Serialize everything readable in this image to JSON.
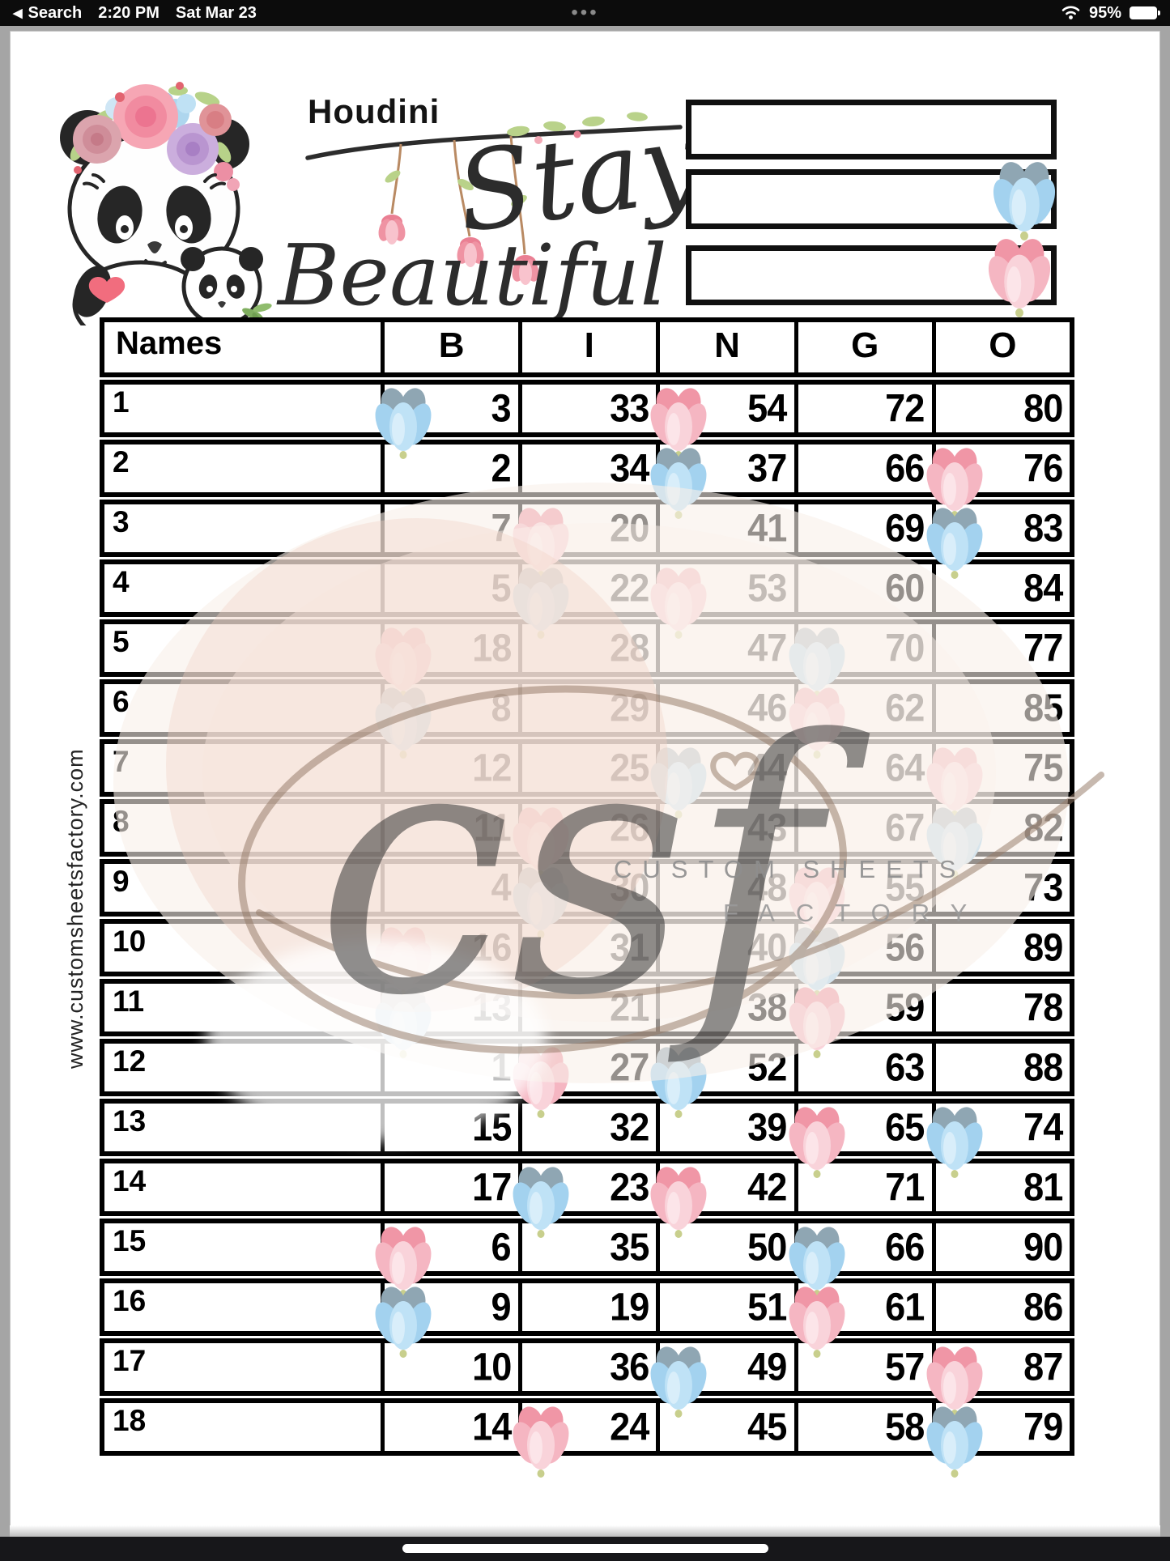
{
  "status_bar": {
    "back_arrow": "◀",
    "back": "Search",
    "time": "2:20 PM",
    "date": "Sat Mar 23",
    "handle_dots": "•••",
    "battery_percent": "95%"
  },
  "header": {
    "player_name": "Houdini",
    "title_word1": "Stay",
    "title_word2": "Beautiful",
    "info_boxes": [
      {
        "flower": ""
      },
      {
        "flower": "blue"
      },
      {
        "flower": "pink"
      }
    ]
  },
  "table": {
    "headers": [
      "Names",
      "B",
      "I",
      "N",
      "G",
      "O"
    ],
    "rows": [
      {
        "label": "1",
        "cells": [
          {
            "v": "3",
            "f": "blue"
          },
          {
            "v": "33"
          },
          {
            "v": "54",
            "f": "pink"
          },
          {
            "v": "72"
          },
          {
            "v": "80"
          }
        ]
      },
      {
        "label": "2",
        "cells": [
          {
            "v": "2"
          },
          {
            "v": "34"
          },
          {
            "v": "37",
            "f": "blue"
          },
          {
            "v": "66"
          },
          {
            "v": "76",
            "f": "pink"
          }
        ]
      },
      {
        "label": "3",
        "cells": [
          {
            "v": "7"
          },
          {
            "v": "20",
            "f": "pink"
          },
          {
            "v": "41"
          },
          {
            "v": "69"
          },
          {
            "v": "83",
            "f": "blue"
          }
        ]
      },
      {
        "label": "4",
        "cells": [
          {
            "v": "5"
          },
          {
            "v": "22",
            "f": "blue"
          },
          {
            "v": "53",
            "f": "pink"
          },
          {
            "v": "60"
          },
          {
            "v": "84"
          }
        ]
      },
      {
        "label": "5",
        "cells": [
          {
            "v": "18",
            "f": "pink"
          },
          {
            "v": "28"
          },
          {
            "v": "47"
          },
          {
            "v": "70",
            "f": "blue"
          },
          {
            "v": "77"
          }
        ]
      },
      {
        "label": "6",
        "cells": [
          {
            "v": "8",
            "f": "blue"
          },
          {
            "v": "29"
          },
          {
            "v": "46"
          },
          {
            "v": "62",
            "f": "pink"
          },
          {
            "v": "85"
          }
        ]
      },
      {
        "label": "7",
        "cells": [
          {
            "v": "12"
          },
          {
            "v": "25"
          },
          {
            "v": "44",
            "f": "blue"
          },
          {
            "v": "64"
          },
          {
            "v": "75",
            "f": "pink"
          }
        ]
      },
      {
        "label": "8",
        "cells": [
          {
            "v": "11"
          },
          {
            "v": "26",
            "f": "pink"
          },
          {
            "v": "43"
          },
          {
            "v": "67"
          },
          {
            "v": "82",
            "f": "blue"
          }
        ]
      },
      {
        "label": "9",
        "cells": [
          {
            "v": "4"
          },
          {
            "v": "30",
            "f": "blue"
          },
          {
            "v": "48"
          },
          {
            "v": "55",
            "f": "pink"
          },
          {
            "v": "73"
          }
        ]
      },
      {
        "label": "10",
        "cells": [
          {
            "v": "16",
            "f": "pink"
          },
          {
            "v": "31"
          },
          {
            "v": "40"
          },
          {
            "v": "56",
            "f": "blue"
          },
          {
            "v": "89"
          }
        ]
      },
      {
        "label": "11",
        "cells": [
          {
            "v": "13",
            "f": "blue"
          },
          {
            "v": "21"
          },
          {
            "v": "38"
          },
          {
            "v": "59",
            "f": "pink"
          },
          {
            "v": "78"
          }
        ]
      },
      {
        "label": "12",
        "cells": [
          {
            "v": "1"
          },
          {
            "v": "27",
            "f": "pink"
          },
          {
            "v": "52",
            "f": "blue"
          },
          {
            "v": "63"
          },
          {
            "v": "88"
          }
        ]
      },
      {
        "label": "13",
        "cells": [
          {
            "v": "15"
          },
          {
            "v": "32"
          },
          {
            "v": "39"
          },
          {
            "v": "65",
            "f": "pink"
          },
          {
            "v": "74",
            "f": "blue"
          }
        ]
      },
      {
        "label": "14",
        "cells": [
          {
            "v": "17"
          },
          {
            "v": "23",
            "f": "blue"
          },
          {
            "v": "42",
            "f": "pink"
          },
          {
            "v": "71"
          },
          {
            "v": "81"
          }
        ]
      },
      {
        "label": "15",
        "cells": [
          {
            "v": "6",
            "f": "pink"
          },
          {
            "v": "35"
          },
          {
            "v": "50"
          },
          {
            "v": "66",
            "f": "blue"
          },
          {
            "v": "90"
          }
        ]
      },
      {
        "label": "16",
        "cells": [
          {
            "v": "9",
            "f": "blue"
          },
          {
            "v": "19"
          },
          {
            "v": "51"
          },
          {
            "v": "61",
            "f": "pink"
          },
          {
            "v": "86"
          }
        ]
      },
      {
        "label": "17",
        "cells": [
          {
            "v": "10"
          },
          {
            "v": "36"
          },
          {
            "v": "49",
            "f": "blue"
          },
          {
            "v": "57"
          },
          {
            "v": "87",
            "f": "pink"
          }
        ]
      },
      {
        "label": "18",
        "cells": [
          {
            "v": "14"
          },
          {
            "v": "24",
            "f": "pink"
          },
          {
            "v": "45"
          },
          {
            "v": "58"
          },
          {
            "v": "79",
            "f": "blue"
          }
        ]
      }
    ]
  },
  "watermark": {
    "site": "www.customsheetsfactory.com",
    "script": "csf",
    "label_line1": "CUSTOM SHEETS",
    "label_line2": "FACTORY"
  },
  "colors": {
    "flower_blue": "#a3d2ef",
    "flower_blue_dark": "#8fa6b3",
    "flower_pink": "#f5b6c2",
    "flower_pink_dark": "#f096a6",
    "ink": "#000000",
    "watermark_brown": "#957a67"
  }
}
